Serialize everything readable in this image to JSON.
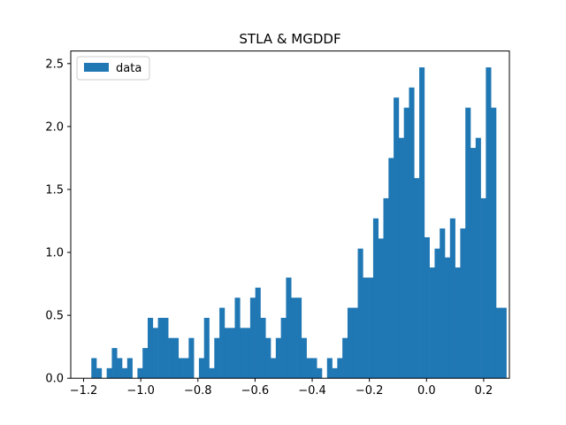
{
  "chart_data": {
    "type": "bar",
    "title": "STLA & MGDDF",
    "xlabel": "",
    "ylabel": "",
    "xlim": [
      -1.245,
      0.29
    ],
    "ylim": [
      0,
      2.6
    ],
    "xticks": [
      -1.2,
      -1.0,
      -0.8,
      -0.6,
      -0.4,
      -0.2,
      0.0,
      0.2
    ],
    "xtick_labels": [
      "−1.2",
      "−1.0",
      "−0.8",
      "−0.6",
      "−0.4",
      "−0.2",
      "0.0",
      "0.2"
    ],
    "yticks": [
      0.0,
      0.5,
      1.0,
      1.5,
      2.0,
      2.5
    ],
    "ytick_labels": [
      "0.0",
      "0.5",
      "1.0",
      "1.5",
      "2.0",
      "2.5"
    ],
    "legend": {
      "entries": [
        "data"
      ],
      "position": "upper left"
    },
    "grid": false,
    "bar_color": "#1f77b4",
    "bins": {
      "start": -1.173,
      "width": 0.01793,
      "heights": [
        0.16,
        0.08,
        0.0,
        0.08,
        0.24,
        0.16,
        0.08,
        0.16,
        0.0,
        0.08,
        0.24,
        0.48,
        0.4,
        0.48,
        0.48,
        0.32,
        0.32,
        0.16,
        0.16,
        0.32,
        0.0,
        0.16,
        0.48,
        0.08,
        0.32,
        0.56,
        0.4,
        0.4,
        0.64,
        0.4,
        0.4,
        0.64,
        0.72,
        0.48,
        0.32,
        0.16,
        0.32,
        0.48,
        0.8,
        0.64,
        0.64,
        0.32,
        0.16,
        0.16,
        0.08,
        0.0,
        0.16,
        0.08,
        0.16,
        0.32,
        0.56,
        0.56,
        1.03,
        0.8,
        0.8,
        1.27,
        1.11,
        1.43,
        1.75,
        2.23,
        1.91,
        2.15,
        2.31,
        1.59,
        2.47,
        1.12,
        0.88,
        1.03,
        1.19,
        0.96,
        1.27,
        0.88,
        1.19,
        2.15,
        1.83,
        1.91,
        1.43,
        2.47,
        2.15,
        0.56,
        0.56
      ]
    }
  }
}
